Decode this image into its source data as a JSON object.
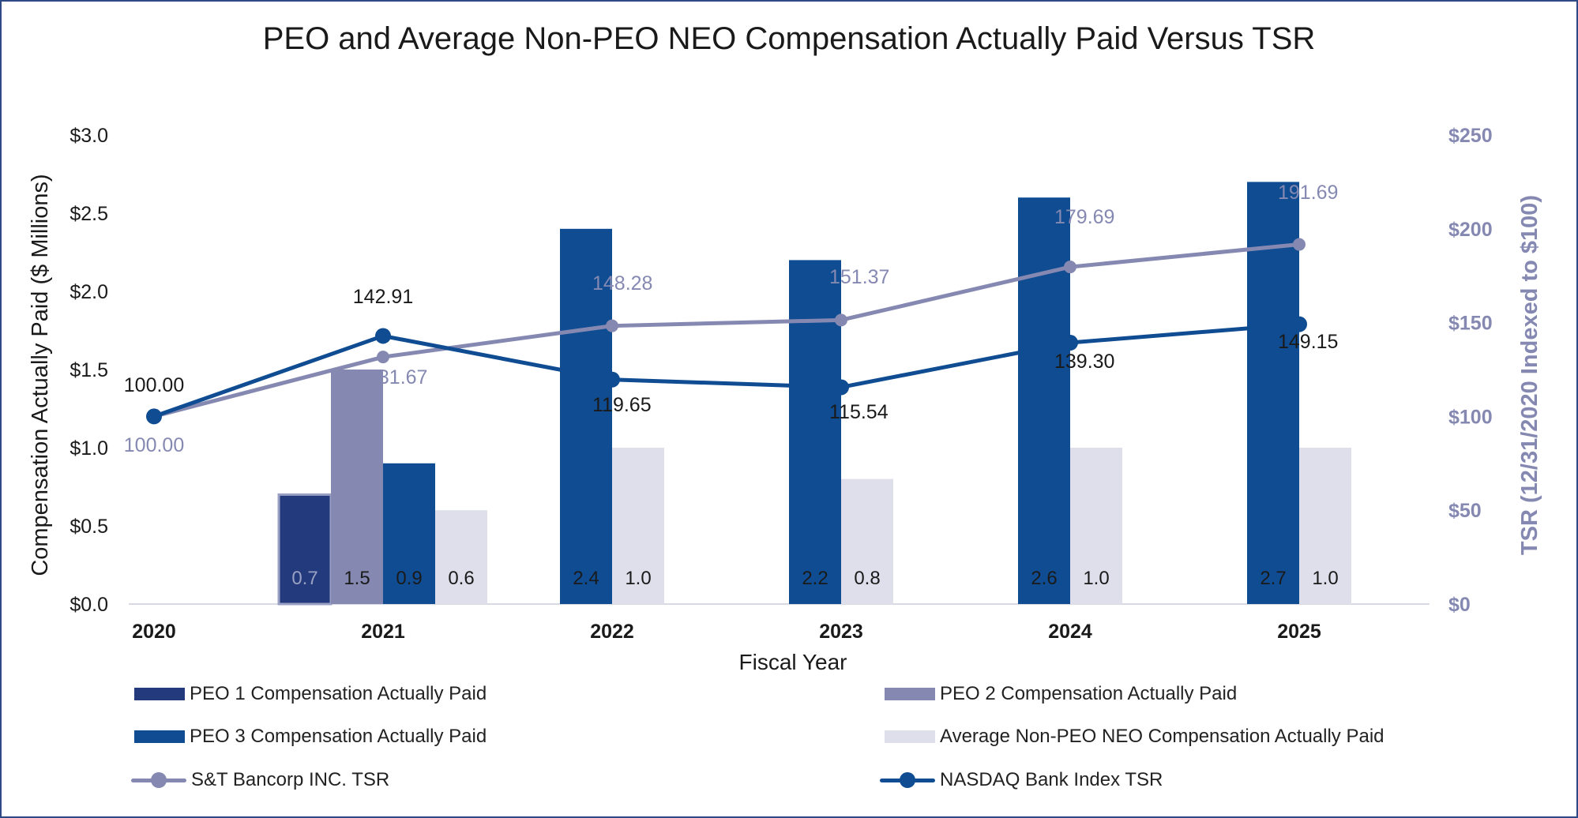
{
  "chart_data": {
    "type": "bar",
    "title": "PEO and Average Non-PEO NEO Compensation Actually Paid Versus TSR",
    "xlabel": "Fiscal Year",
    "ylabel": "Compensation Actually Paid ($ Millions)",
    "y2label": "TSR (12/31/2020 Indexed to $100)",
    "categories": [
      "2020",
      "2021",
      "2022",
      "2023",
      "2024",
      "2025"
    ],
    "ylim": [
      0,
      3.0
    ],
    "y2lim": [
      0,
      250
    ],
    "yticks": [
      "$0.0",
      "$0.5",
      "$1.0",
      "$1.5",
      "$2.0",
      "$2.5",
      "$3.0"
    ],
    "y2ticks": [
      "$0",
      "$50",
      "$100",
      "$150",
      "$200",
      "$250"
    ],
    "series": [
      {
        "name": "PEO 1 Compensation Actually Paid",
        "kind": "bar",
        "axis": "left",
        "color": "#233b7d",
        "values": [
          null,
          0.7,
          null,
          null,
          null,
          null
        ],
        "labels": [
          "",
          "0.7",
          "",
          "",
          "",
          ""
        ]
      },
      {
        "name": "PEO 2 Compensation Actually Paid",
        "kind": "bar",
        "axis": "left",
        "color": "#8589b2",
        "values": [
          null,
          1.5,
          null,
          null,
          null,
          null
        ],
        "labels": [
          "",
          "1.5",
          "",
          "",
          "",
          ""
        ]
      },
      {
        "name": "PEO 3 Compensation Actually Paid",
        "kind": "bar",
        "axis": "left",
        "color": "#0f4c92",
        "values": [
          null,
          0.9,
          2.4,
          2.2,
          2.6,
          2.7
        ],
        "labels": [
          "",
          "0.9",
          "2.4",
          "2.2",
          "2.6",
          "2.7"
        ]
      },
      {
        "name": "Average Non-PEO NEO Compensation Actually Paid",
        "kind": "bar",
        "axis": "left",
        "color": "#dedfeb",
        "values": [
          null,
          0.6,
          1.0,
          0.8,
          1.0,
          1.0
        ],
        "labels": [
          "",
          "0.6",
          "1.0",
          "0.8",
          "1.0",
          "1.0"
        ]
      },
      {
        "name": "S&T Bancorp INC. TSR",
        "kind": "line",
        "axis": "right",
        "color": "#8589b2",
        "values": [
          100.0,
          131.67,
          148.28,
          151.37,
          179.69,
          191.69
        ],
        "labels": [
          "100.00",
          "131.67",
          "148.28",
          "151.37",
          "179.69",
          "191.69"
        ]
      },
      {
        "name": "NASDAQ Bank Index TSR",
        "kind": "line",
        "axis": "right",
        "color": "#0f4c92",
        "values": [
          100.0,
          142.91,
          119.65,
          115.54,
          139.3,
          149.15
        ],
        "labels": [
          "100.00",
          "142.91",
          "119.65",
          "115.54",
          "139.30",
          "149.15"
        ]
      }
    ],
    "legend_position": "bottom",
    "grid": false
  },
  "legend": {
    "peo1": "PEO 1 Compensation Actually Paid",
    "peo2": "PEO 2 Compensation Actually Paid",
    "peo3": "PEO 3 Compensation Actually Paid",
    "avg": "Average Non-PEO NEO Compensation Actually Paid",
    "st": "S&T Bancorp INC. TSR",
    "nasdaq": "NASDAQ Bank Index TSR"
  }
}
